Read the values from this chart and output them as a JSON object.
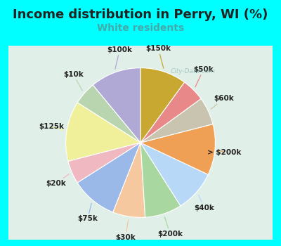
{
  "title": "Income distribution in Perry, WI (%)",
  "subtitle": "White residents",
  "background_color": "#00FFFF",
  "chart_bg_color": "#ddf0e8",
  "labels": [
    "$100k",
    "$10k",
    "$125k",
    "$20k",
    "$75k",
    "$30k",
    "$200k",
    "$40k",
    "> $200k",
    "$60k",
    "$50k",
    "$150k"
  ],
  "values": [
    11,
    5,
    13,
    5,
    10,
    7,
    8,
    9,
    11,
    6,
    5,
    10
  ],
  "colors": [
    "#b0a8d5",
    "#b8d5b0",
    "#f0f09a",
    "#f0b8c0",
    "#9ab8e8",
    "#f5c8a0",
    "#a8d8a0",
    "#b8d8f8",
    "#f0a055",
    "#c8c4b0",
    "#e88888",
    "#c8a830"
  ],
  "title_fontsize": 13,
  "subtitle_fontsize": 10,
  "subtitle_color": "#44aaaa",
  "watermark": "City-Data.com",
  "label_fontsize": 7.5,
  "startangle": 90
}
